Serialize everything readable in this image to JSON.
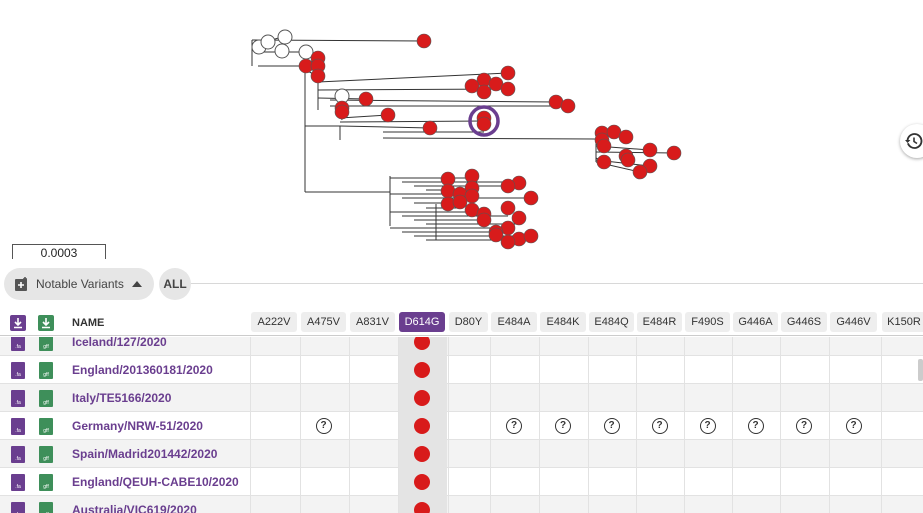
{
  "tree": {
    "scale_label": "0.0003",
    "node_color": "#d81b1b",
    "highlight_color": "#6a3e8f"
  },
  "controls": {
    "notable_variants_label": "Notable Variants",
    "all_label": "ALL",
    "history_icon": "history-icon"
  },
  "table": {
    "name_header": "NAME",
    "fasta_icon_label": ".fa",
    "gff_icon_label": "gff",
    "mutations": [
      "A222V",
      "A475V",
      "A831V",
      "D614G",
      "D80Y",
      "E484A",
      "E484K",
      "E484Q",
      "E484R",
      "F490S",
      "G446A",
      "G446S",
      "G446V",
      "K150R"
    ],
    "selected_mutation": "D614G",
    "rows": [
      {
        "name": "Iceland/127/2020",
        "marks": {
          "D614G": "present"
        }
      },
      {
        "name": "England/201360181/2020",
        "marks": {
          "D614G": "present"
        }
      },
      {
        "name": "Italy/TE5166/2020",
        "marks": {
          "D614G": "present"
        }
      },
      {
        "name": "Germany/NRW-51/2020",
        "marks": {
          "A475V": "unknown",
          "D614G": "present",
          "E484A": "unknown",
          "E484K": "unknown",
          "E484Q": "unknown",
          "E484R": "unknown",
          "F490S": "unknown",
          "G446A": "unknown",
          "G446S": "unknown",
          "G446V": "unknown"
        }
      },
      {
        "name": "Spain/Madrid201442/2020",
        "marks": {
          "D614G": "present"
        }
      },
      {
        "name": "England/QEUH-CABE10/2020",
        "marks": {
          "D614G": "present"
        }
      },
      {
        "name": "Australia/VIC619/2020",
        "marks": {
          "D614G": "present"
        }
      }
    ]
  }
}
